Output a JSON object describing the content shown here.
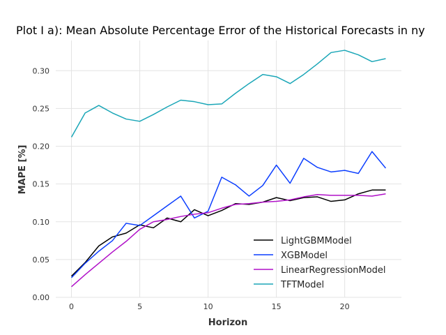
{
  "chart_data": {
    "type": "line",
    "title": "Plot I a): Mean Absolute Percentage Error of the Historical Forecasts in ny",
    "xlabel": "Horizon",
    "ylabel": "MAPE [%]",
    "xlim": [
      -1.15,
      24.15
    ],
    "ylim": [
      0,
      0.34
    ],
    "xticks": [
      0,
      5,
      10,
      15,
      20
    ],
    "yticks": [
      0.0,
      0.05,
      0.1,
      0.15,
      0.2,
      0.25,
      0.3
    ],
    "ytick_labels": [
      "0.00",
      "0.05",
      "0.10",
      "0.15",
      "0.20",
      "0.25",
      "0.30"
    ],
    "grid": true,
    "legend_position": "lower-right",
    "x": [
      0,
      1,
      2,
      3,
      4,
      5,
      6,
      7,
      8,
      9,
      10,
      11,
      12,
      13,
      14,
      15,
      16,
      17,
      18,
      19,
      20,
      21,
      22,
      23
    ],
    "series": [
      {
        "name": "LightGBMModel",
        "color": "#000000",
        "values": [
          0.028,
          0.046,
          0.068,
          0.08,
          0.085,
          0.096,
          0.092,
          0.105,
          0.1,
          0.116,
          0.108,
          0.115,
          0.124,
          0.123,
          0.126,
          0.132,
          0.128,
          0.132,
          0.133,
          0.127,
          0.129,
          0.137,
          0.142,
          0.142
        ]
      },
      {
        "name": "XGBModel",
        "color": "#0a3dff",
        "values": [
          0.026,
          0.045,
          0.061,
          0.075,
          0.098,
          0.095,
          0.108,
          0.121,
          0.134,
          0.105,
          0.114,
          0.159,
          0.149,
          0.134,
          0.148,
          0.175,
          0.151,
          0.184,
          0.172,
          0.166,
          0.168,
          0.164,
          0.193,
          0.171
        ]
      },
      {
        "name": "LinearRegressionModel",
        "color": "#b010c8",
        "values": [
          0.014,
          0.03,
          0.045,
          0.06,
          0.074,
          0.09,
          0.1,
          0.103,
          0.107,
          0.11,
          0.112,
          0.118,
          0.123,
          0.124,
          0.126,
          0.127,
          0.129,
          0.133,
          0.136,
          0.135,
          0.135,
          0.135,
          0.134,
          0.137
        ]
      },
      {
        "name": "TFTModel",
        "color": "#1aa6b7",
        "values": [
          0.212,
          0.244,
          0.254,
          0.244,
          0.236,
          0.233,
          0.242,
          0.252,
          0.261,
          0.259,
          0.255,
          0.256,
          0.27,
          0.283,
          0.295,
          0.292,
          0.283,
          0.295,
          0.309,
          0.324,
          0.327,
          0.321,
          0.312,
          0.316
        ]
      }
    ]
  }
}
